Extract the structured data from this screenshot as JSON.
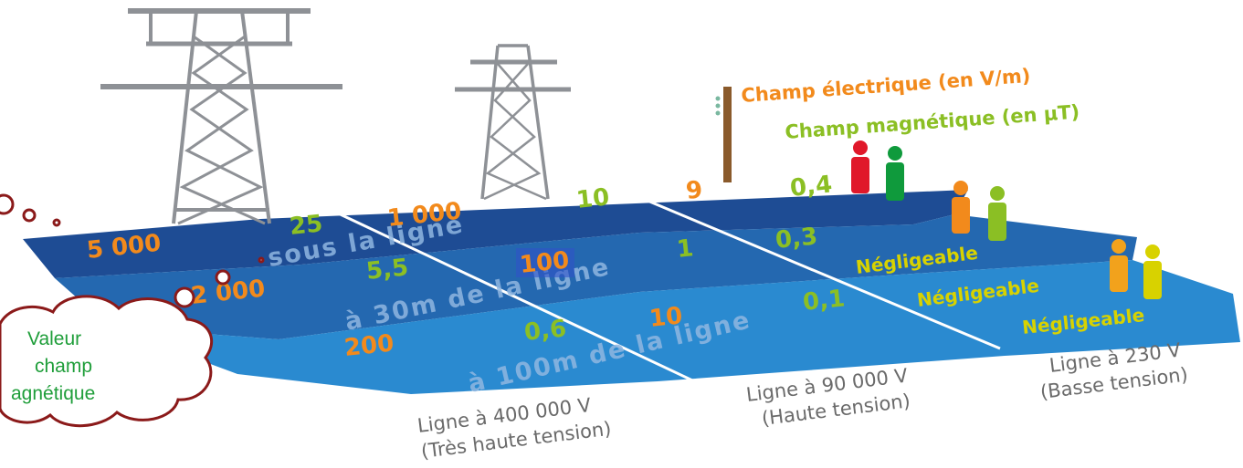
{
  "legend": {
    "electric": "Champ électrique (en V/m)",
    "magnetic": "Champ magnétique (en µT)"
  },
  "bands": {
    "under": "sous la ligne",
    "at30": "à 30m de la ligne",
    "at100": "à 100m de la ligne"
  },
  "line400": {
    "caption_line1": "Ligne à 400 000 V",
    "caption_line2": "(Très haute tension)",
    "under_e": "5 000",
    "under_m": "25",
    "at30_e": "2 000",
    "at30_m": "5,5",
    "at100_e": "200",
    "at100_m": "0,6"
  },
  "line90": {
    "caption_line1": "Ligne à 90 000 V",
    "caption_line2": "(Haute tension)",
    "under_e": "1 000",
    "under_m": "10",
    "at30_e": "100",
    "at30_m": "1",
    "at100_e": "10",
    "at100_m": "0,1"
  },
  "line230": {
    "caption_line1": "Ligne à 230 V",
    "caption_line2": "(Basse tension)",
    "under_e": "9",
    "under_m": "0,4",
    "at30_e": "Négligeable",
    "at30_m": "0,3",
    "at100_e": "Négligeable",
    "at100_m_text": "Négligeable"
  },
  "cloud": {
    "line1": "Valeur",
    "line2": "champ",
    "line3": "agnétique"
  },
  "colors": {
    "electric": "#f28a1c",
    "magnetic": "#8bbf24",
    "band_under": "#1e4c94",
    "band_30": "#2468b0",
    "band_100": "#2a8ad0",
    "tower": "#8e9196",
    "caption": "#6a6a6a",
    "cloud_border": "#8b1a1a",
    "cloud_text": "#1f9e3a"
  }
}
